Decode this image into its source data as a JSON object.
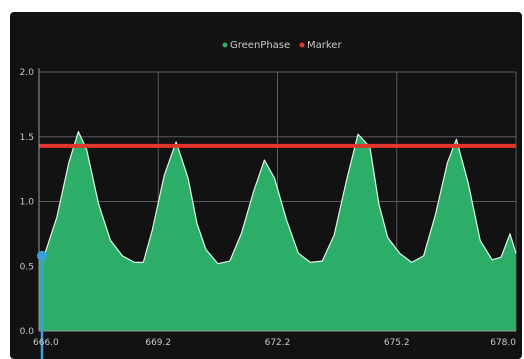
{
  "colors": {
    "background": "#121212",
    "grid": "#5a5a5a",
    "area_fill": "#2cae68",
    "area_line": "#dff5e8",
    "threshold": "#e2352b",
    "cursor": "#3b9ede"
  },
  "chart_data": {
    "type": "area",
    "legend": {
      "placement": "top-center",
      "entries": [
        {
          "label": "GreenPhase",
          "color": "#2cae68"
        },
        {
          "label": "Marker",
          "color": "#e2352b"
        }
      ]
    },
    "x_ticks": [
      {
        "value": 0,
        "label": "666.0"
      },
      {
        "value": 20,
        "label": "669.2"
      },
      {
        "value": 40,
        "label": "672.2"
      },
      {
        "value": 60,
        "label": "675.2"
      },
      {
        "value": 80,
        "label": "678.0"
      }
    ],
    "xlim": [
      0,
      80
    ],
    "y_ticks": [
      {
        "value": 20,
        "label": "2.0"
      },
      {
        "value": 15,
        "label": "1.5"
      },
      {
        "value": 10,
        "label": "1.0"
      },
      {
        "value": 5,
        "label": "0.5"
      },
      {
        "value": 0,
        "label": "0.0"
      }
    ],
    "ylim": [
      0,
      20
    ],
    "grid": true,
    "series": [
      {
        "name": "GreenPhase",
        "x": [
          0,
          1,
          3,
          5,
          6.6,
          8,
          10,
          12,
          14,
          16,
          17.5,
          19,
          21,
          23,
          25,
          26.5,
          28,
          30,
          32,
          34,
          36,
          37.8,
          39.5,
          41.5,
          43.5,
          45.5,
          47.5,
          49.5,
          51.5,
          53.5,
          55.5,
          57,
          58.5,
          60.5,
          62.5,
          64.5,
          66.5,
          68.5,
          70,
          72,
          74,
          76,
          77.5,
          79,
          80
        ],
        "y": [
          5.8,
          6.0,
          8.8,
          13.0,
          15.4,
          14.0,
          9.8,
          7.0,
          5.8,
          5.3,
          5.3,
          7.8,
          12.0,
          14.6,
          11.8,
          8.3,
          6.3,
          5.2,
          5.4,
          7.6,
          10.8,
          13.2,
          11.8,
          8.6,
          6.0,
          5.3,
          5.4,
          7.4,
          11.5,
          15.2,
          14.2,
          9.8,
          7.2,
          6.0,
          5.3,
          5.8,
          9.0,
          13.0,
          14.8,
          11.4,
          7.0,
          5.5,
          5.7,
          7.5,
          6.0
        ]
      },
      {
        "name": "Marker",
        "x": [
          0,
          80
        ],
        "y": [
          14.3,
          14.3
        ]
      }
    ],
    "cursor": {
      "x": 0.5,
      "y": 5.8
    }
  }
}
